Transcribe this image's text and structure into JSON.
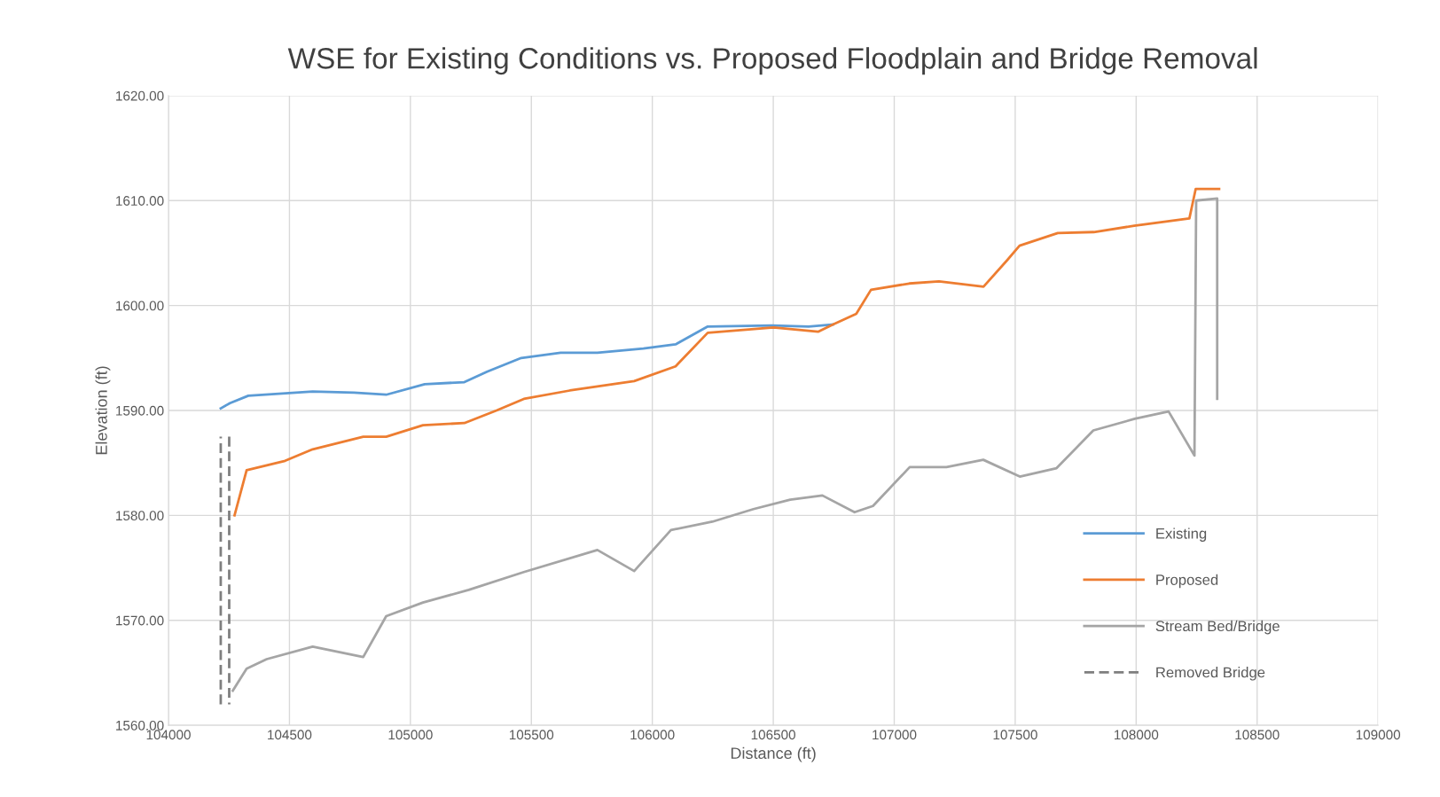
{
  "chart_data": {
    "type": "line",
    "title": "WSE for Existing Conditions vs. Proposed Floodplain and Bridge Removal",
    "xlabel": "Distance (ft)",
    "ylabel": "Elevation (ft)",
    "xlim": [
      104000,
      109000
    ],
    "xticks": [
      104000,
      104500,
      105000,
      105500,
      106000,
      106500,
      107000,
      107500,
      108000,
      108500,
      109000
    ],
    "ylim": [
      1560,
      1620
    ],
    "yticks": [
      {
        "value": 1560,
        "label": "1560.00"
      },
      {
        "value": 1570,
        "label": "1570.00"
      },
      {
        "value": 1580,
        "label": "1580.00"
      },
      {
        "value": 1590,
        "label": "1590.00"
      },
      {
        "value": 1600,
        "label": "1600.00"
      },
      {
        "value": 1610,
        "label": "1610.00"
      },
      {
        "value": 1620,
        "label": "1620.00"
      }
    ],
    "grid": true,
    "legend": "lower right",
    "marker": "none",
    "series": [
      {
        "name": "Existing",
        "color": "#5b9bd5",
        "line_style": "solid",
        "x": [
          104216,
          104254,
          104330,
          104596,
          104767,
          104900,
          105059,
          105223,
          105317,
          105458,
          105621,
          105773,
          105963,
          106096,
          106229,
          106494,
          106646,
          106700,
          106747
        ],
        "values": [
          1590.2,
          1590.7,
          1591.4,
          1591.8,
          1591.7,
          1591.5,
          1592.5,
          1592.7,
          1593.7,
          1595.0,
          1595.5,
          1595.5,
          1595.9,
          1596.3,
          1598.0,
          1598.1,
          1598.0,
          1598.1,
          1598.2
        ]
      },
      {
        "name": "Proposed",
        "color": "#ed7d31",
        "line_style": "solid",
        "x": [
          104273,
          104323,
          104482,
          104596,
          104805,
          104900,
          105052,
          105223,
          105356,
          105469,
          105659,
          105773,
          105925,
          106096,
          106229,
          106501,
          106685,
          106747,
          106843,
          106904,
          107062,
          107185,
          107369,
          107466,
          107518,
          107676,
          107825,
          107992,
          108220,
          108246,
          108343
        ],
        "values": [
          1580.0,
          1584.3,
          1585.2,
          1586.3,
          1587.5,
          1587.5,
          1588.6,
          1588.8,
          1590.0,
          1591.1,
          1591.9,
          1592.3,
          1592.8,
          1594.2,
          1597.4,
          1597.9,
          1597.5,
          1598.2,
          1599.2,
          1601.5,
          1602.1,
          1602.3,
          1601.8,
          1604.3,
          1605.7,
          1606.9,
          1607.0,
          1607.6,
          1608.3,
          1611.1,
          1611.1
        ]
      },
      {
        "name": "Stream Bed/Bridge",
        "color": "#a5a5a5",
        "line_style": "solid",
        "x": [
          104266,
          104323,
          104406,
          104596,
          104805,
          104900,
          105052,
          105241,
          105469,
          105773,
          105925,
          106077,
          106248,
          106418,
          106570,
          106703,
          106836,
          106912,
          107064,
          107216,
          107368,
          107519,
          107671,
          107823,
          107994,
          108134,
          108241,
          108248,
          108335,
          108335
        ],
        "values": [
          1563.3,
          1565.4,
          1566.3,
          1567.5,
          1566.5,
          1570.4,
          1571.7,
          1572.9,
          1574.6,
          1576.7,
          1574.7,
          1578.6,
          1579.4,
          1580.6,
          1581.5,
          1581.9,
          1580.3,
          1580.9,
          1584.6,
          1584.6,
          1585.3,
          1583.7,
          1584.5,
          1588.1,
          1589.2,
          1589.9,
          1585.7,
          1610.0,
          1610.2,
          1591.1
        ]
      },
      {
        "name": "Removed Bridge",
        "color": "#7f7f7f",
        "line_style": "dashed",
        "x": [
          104216,
          104216,
          null,
          104251,
          104251
        ],
        "values": [
          1562.0,
          1587.5,
          null,
          1587.5,
          1562.0
        ]
      }
    ]
  }
}
